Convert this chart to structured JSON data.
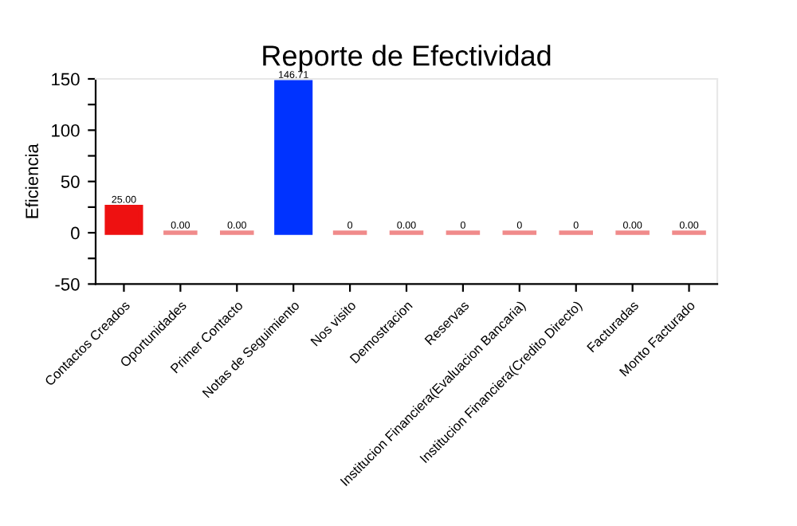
{
  "chart_data": {
    "type": "bar",
    "title": "Reporte de Efectividad",
    "ylabel": "Eficiencia",
    "categories": [
      "Contactos Creados",
      "Oportunidades",
      "Primer Contacto",
      "Notas de Seguimiento",
      "Nos visito",
      "Demostracion",
      "Reservas",
      "Institucion Financiera(Evaluacion Bancaria)",
      "Institucion Financiera(Credito Directo)",
      "Facturadas",
      "Monto Facturado"
    ],
    "values": [
      25,
      0,
      0,
      146.71,
      0,
      0,
      0,
      0,
      0,
      0,
      0
    ],
    "colors": [
      "#ee1111",
      "#f08a8a",
      "#f08a8a",
      "#0033ff",
      "#f08a8a",
      "#f08a8a",
      "#f08a8a",
      "#f08a8a",
      "#f08a8a",
      "#f08a8a",
      "#f08a8a"
    ],
    "value_labels": [
      "25.00",
      "0.00",
      "0.00",
      "146.71",
      "0",
      "0.00",
      "0",
      "0",
      "0",
      "0.00",
      "0.00"
    ],
    "ylim": [
      -50,
      150
    ],
    "yticks": [
      -50,
      {
        "value": -25,
        "label": null
      },
      0,
      {
        "value": 25,
        "label": null
      },
      50,
      {
        "value": 75,
        "label": null
      },
      100,
      {
        "value": 125,
        "label": null
      },
      150
    ],
    "grid": false,
    "legend": false
  }
}
